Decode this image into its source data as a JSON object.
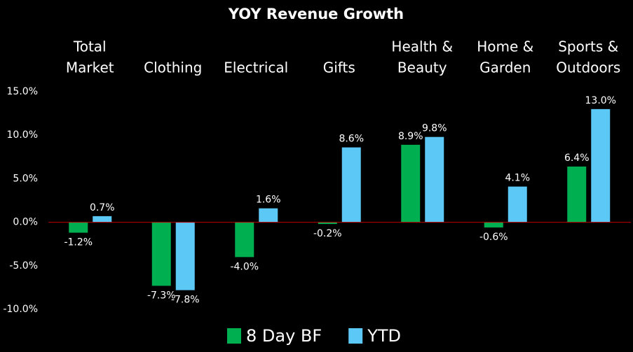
{
  "chart_data": {
    "type": "bar",
    "title": "YOY Revenue Growth",
    "categories": [
      [
        "Total",
        "Market"
      ],
      [
        "Clothing"
      ],
      [
        "Electrical"
      ],
      [
        "Gifts"
      ],
      [
        "Health &",
        "Beauty"
      ],
      [
        "Home &",
        "Garden"
      ],
      [
        "Sports &",
        "Outdoors"
      ]
    ],
    "series": [
      {
        "name": "8 Day BF",
        "color": "#00b050",
        "values": [
          -1.2,
          -7.3,
          -4.0,
          -0.2,
          8.9,
          -0.6,
          6.4
        ],
        "value_labels": [
          "-1.2%",
          "-7.3%",
          "-4.0%",
          "-0.2%",
          "8.9%",
          "-0.6%",
          "6.4%"
        ]
      },
      {
        "name": "YTD",
        "color": "#5bc8f5",
        "values": [
          0.7,
          -7.8,
          1.6,
          8.6,
          9.8,
          4.1,
          13.0
        ],
        "value_labels": [
          "0.7%",
          "-7.8%",
          "1.6%",
          "8.6%",
          "9.8%",
          "4.1%",
          "13.0%"
        ]
      }
    ],
    "ylim": [
      -10,
      15
    ],
    "yticks": [
      {
        "value": -10,
        "label": "-10.0%"
      },
      {
        "value": -5,
        "label": "-5.0%"
      },
      {
        "value": 0,
        "label": "0.0%"
      },
      {
        "value": 5,
        "label": "5.0%"
      },
      {
        "value": 10,
        "label": "10.0%"
      },
      {
        "value": 15,
        "label": "15.0%"
      }
    ],
    "grid": false,
    "legend": "bottom",
    "zero_line_color": "#c00000"
  }
}
